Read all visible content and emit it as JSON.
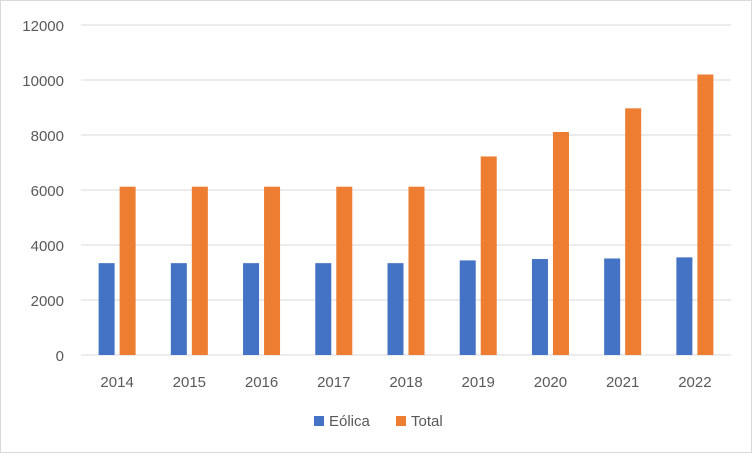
{
  "chart_data": {
    "type": "bar",
    "title": "",
    "xlabel": "",
    "ylabel": "",
    "categories": [
      "2014",
      "2015",
      "2016",
      "2017",
      "2018",
      "2019",
      "2020",
      "2021",
      "2022"
    ],
    "series": [
      {
        "name": "Eólica",
        "color": "#4472c4",
        "values": [
          3340,
          3340,
          3340,
          3340,
          3340,
          3440,
          3490,
          3510,
          3550
        ]
      },
      {
        "name": "Total",
        "color": "#ed7d31",
        "values": [
          6120,
          6120,
          6120,
          6120,
          6120,
          7220,
          8110,
          8970,
          10200
        ]
      }
    ],
    "ylim": [
      0,
      12000
    ],
    "yticks": [
      0,
      2000,
      4000,
      6000,
      8000,
      10000,
      12000
    ],
    "grid": true,
    "legend_position": "bottom"
  }
}
